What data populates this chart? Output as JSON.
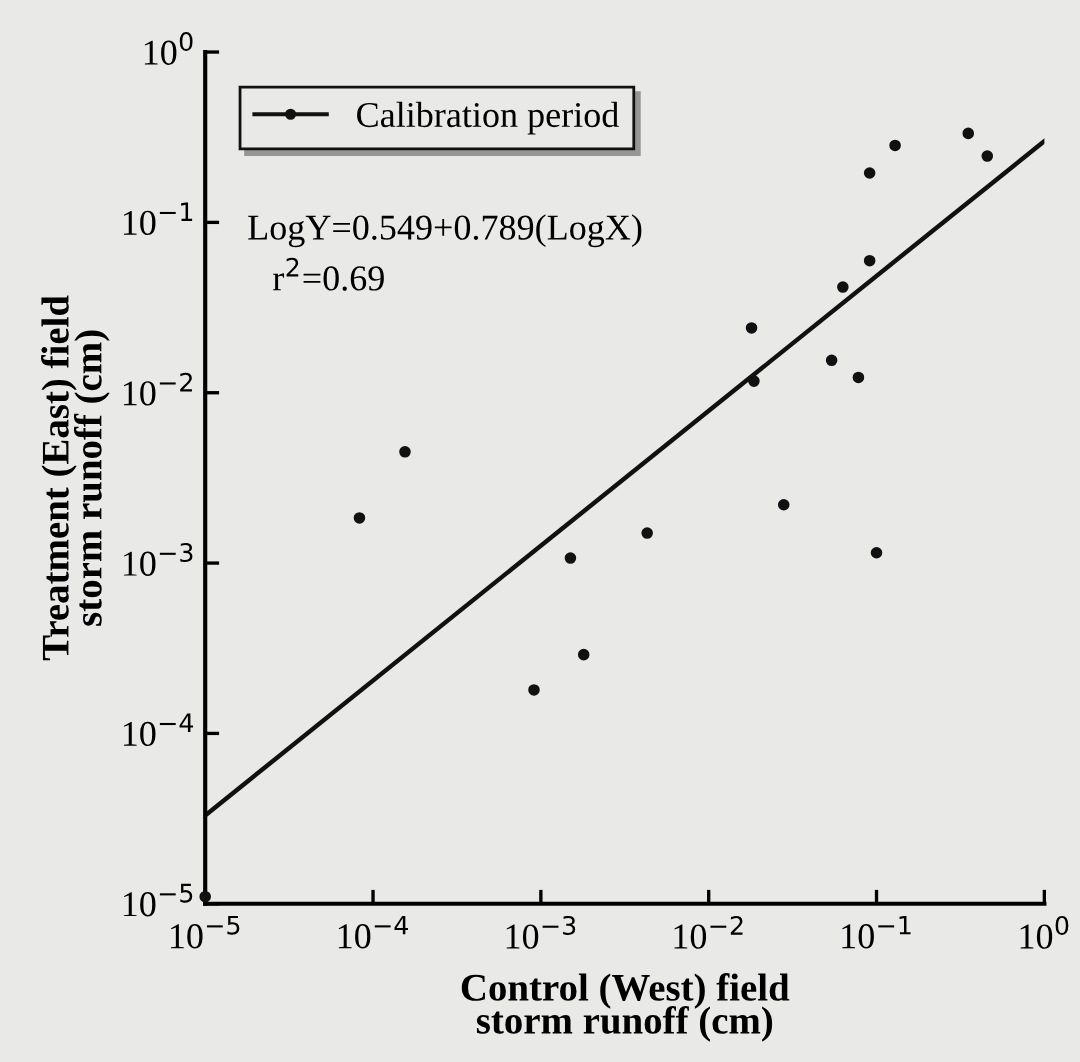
{
  "chart_data": {
    "type": "scatter",
    "xlabel": "Control (West) field\nstorm runoff (cm)",
    "ylabel": "Treatment (East) field\nstorm runoff (cm)",
    "log": "xy",
    "grid": false,
    "legend": "top left",
    "xlim": [
      1e-05,
      1
    ],
    "ylim": [
      1e-05,
      1
    ],
    "xticks": [
      {
        "value": 1e-05,
        "label": "10$^{−5}$"
      },
      {
        "value": 0.0001,
        "label": "10$^{−4}$"
      },
      {
        "value": 0.001,
        "label": "10$^{−3}$"
      },
      {
        "value": 0.01,
        "label": "10$^{−2}$"
      },
      {
        "value": 0.1,
        "label": "10$^{−1}$"
      },
      {
        "value": 1,
        "label": "10$^{0}$"
      }
    ],
    "yticks": [
      {
        "value": 1e-05,
        "label": "10$^{−5}$"
      },
      {
        "value": 0.0001,
        "label": "10$^{−4}$"
      },
      {
        "value": 0.001,
        "label": "10$^{−3}$"
      },
      {
        "value": 0.01,
        "label": "10$^{−2}$"
      },
      {
        "value": 0.1,
        "label": "10$^{−1}$"
      },
      {
        "value": 1,
        "label": "10$^{0}$"
      }
    ],
    "series": [
      {
        "name": "Calibration period",
        "marker": "circle",
        "color": "#111111",
        "x": [
          1e-05,
          8.3e-05,
          0.000155,
          0.0015,
          0.0043,
          0.0018,
          0.00091,
          0.028,
          0.1,
          0.129,
          0.352,
          0.457,
          0.091,
          0.091,
          0.063,
          0.018,
          0.0186,
          0.054,
          0.078
        ],
        "values": [
          1.1e-05,
          0.00184,
          0.0045,
          0.00107,
          0.0015,
          0.00029,
          0.00018,
          0.0022,
          0.00115,
          0.283,
          0.333,
          0.245,
          0.195,
          0.0596,
          0.0417,
          0.024,
          0.0117,
          0.0155,
          0.0123
        ]
      },
      {
        "type": "line",
        "color": "#111111",
        "line_style": "solid",
        "x": [
          1e-05,
          1
        ],
        "values": [
          3.3e-05,
          0.3
        ]
      }
    ],
    "annotations": [
      "LogY=0.549+0.789(LogX)",
      "r$^{2}$=0.69"
    ]
  }
}
